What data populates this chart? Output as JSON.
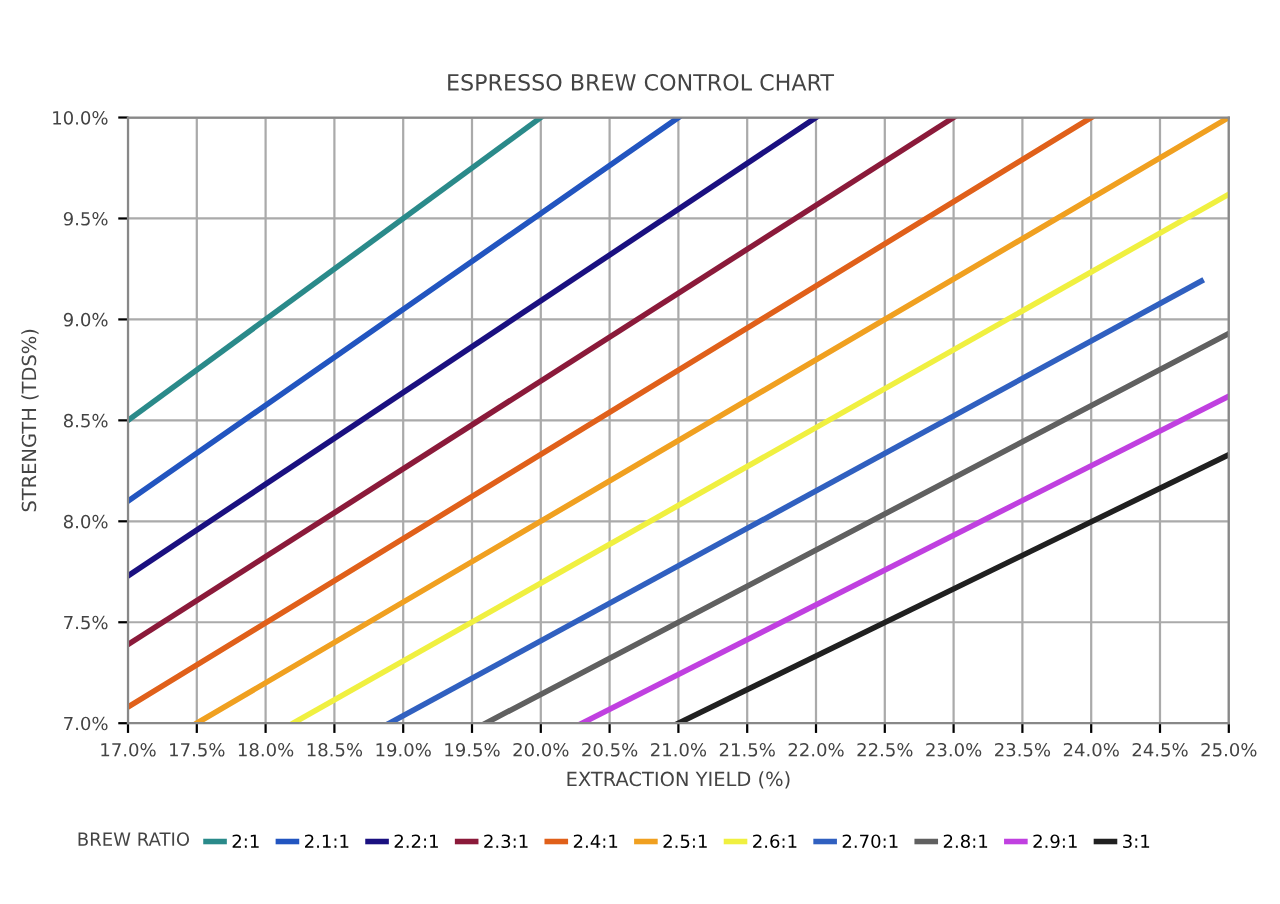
{
  "chart_data": {
    "type": "line",
    "title": "ESPRESSO BREW CONTROL CHART",
    "xlabel": "EXTRACTION YIELD (%)",
    "ylabel": "STRENGTH (TDS%)",
    "legend_title": "BREW RATIO",
    "legend": "bottom",
    "grid": true,
    "marker": "none",
    "line_style": "solid",
    "xlim": [
      17,
      25
    ],
    "ylim": [
      7,
      10
    ],
    "xticks": [
      {
        "value": 17,
        "label": "17.0%"
      },
      {
        "value": 17.5,
        "label": "17.5%"
      },
      {
        "value": 18,
        "label": "18.0%"
      },
      {
        "value": 18.5,
        "label": "18.5%"
      },
      {
        "value": 19,
        "label": "19.0%"
      },
      {
        "value": 19.5,
        "label": "19.5%"
      },
      {
        "value": 20,
        "label": "20.0%"
      },
      {
        "value": 20.5,
        "label": "20.5%"
      },
      {
        "value": 21,
        "label": "21.0%"
      },
      {
        "value": 21.5,
        "label": "21.5%"
      },
      {
        "value": 22,
        "label": "22.0%"
      },
      {
        "value": 22.5,
        "label": "22.5%"
      },
      {
        "value": 23,
        "label": "23.0%"
      },
      {
        "value": 23.5,
        "label": "23.5%"
      },
      {
        "value": 24,
        "label": "24.0%"
      },
      {
        "value": 24.5,
        "label": "24.5%"
      },
      {
        "value": 25,
        "label": "25.0%"
      }
    ],
    "yticks": [
      {
        "value": 7,
        "label": "7.0%"
      },
      {
        "value": 7.5,
        "label": "7.5%"
      },
      {
        "value": 8,
        "label": "8.0%"
      },
      {
        "value": 8.5,
        "label": "8.5%"
      },
      {
        "value": 9,
        "label": "9.0%"
      },
      {
        "value": 9.5,
        "label": "9.5%"
      },
      {
        "value": 10,
        "label": "10.0%"
      }
    ],
    "series": [
      {
        "name": "2:1",
        "color": "#2a8a8a",
        "x": [
          17,
          20
        ],
        "values": [
          8.5,
          10
        ]
      },
      {
        "name": "2.1:1",
        "color": "#2255c0",
        "x": [
          17,
          21
        ],
        "values": [
          8.1,
          10
        ]
      },
      {
        "name": "2.2:1",
        "color": "#1a1080",
        "x": [
          17,
          22
        ],
        "values": [
          7.73,
          10
        ]
      },
      {
        "name": "2.3:1",
        "color": "#8b1a3a",
        "x": [
          17,
          23
        ],
        "values": [
          7.39,
          10
        ]
      },
      {
        "name": "2.4:1",
        "color": "#e0601a",
        "x": [
          17,
          24
        ],
        "values": [
          7.08,
          10
        ]
      },
      {
        "name": "2.5:1",
        "color": "#f0a020",
        "x": [
          17.5,
          25
        ],
        "values": [
          7,
          10
        ]
      },
      {
        "name": "2.6:1",
        "color": "#f0f040",
        "x": [
          18.2,
          25
        ],
        "values": [
          7,
          9.62
        ]
      },
      {
        "name": "2.70:1",
        "color": "#3060c0",
        "x": [
          18.9,
          24.8
        ],
        "values": [
          7,
          9.19
        ]
      },
      {
        "name": "2.8:1",
        "color": "#606060",
        "x": [
          19.6,
          25
        ],
        "values": [
          7,
          8.93
        ]
      },
      {
        "name": "2.9:1",
        "color": "#c040e0",
        "x": [
          20.3,
          25
        ],
        "values": [
          7,
          8.62
        ]
      },
      {
        "name": "3:1",
        "color": "#202020",
        "x": [
          21,
          25
        ],
        "values": [
          7,
          8.33
        ]
      }
    ]
  }
}
